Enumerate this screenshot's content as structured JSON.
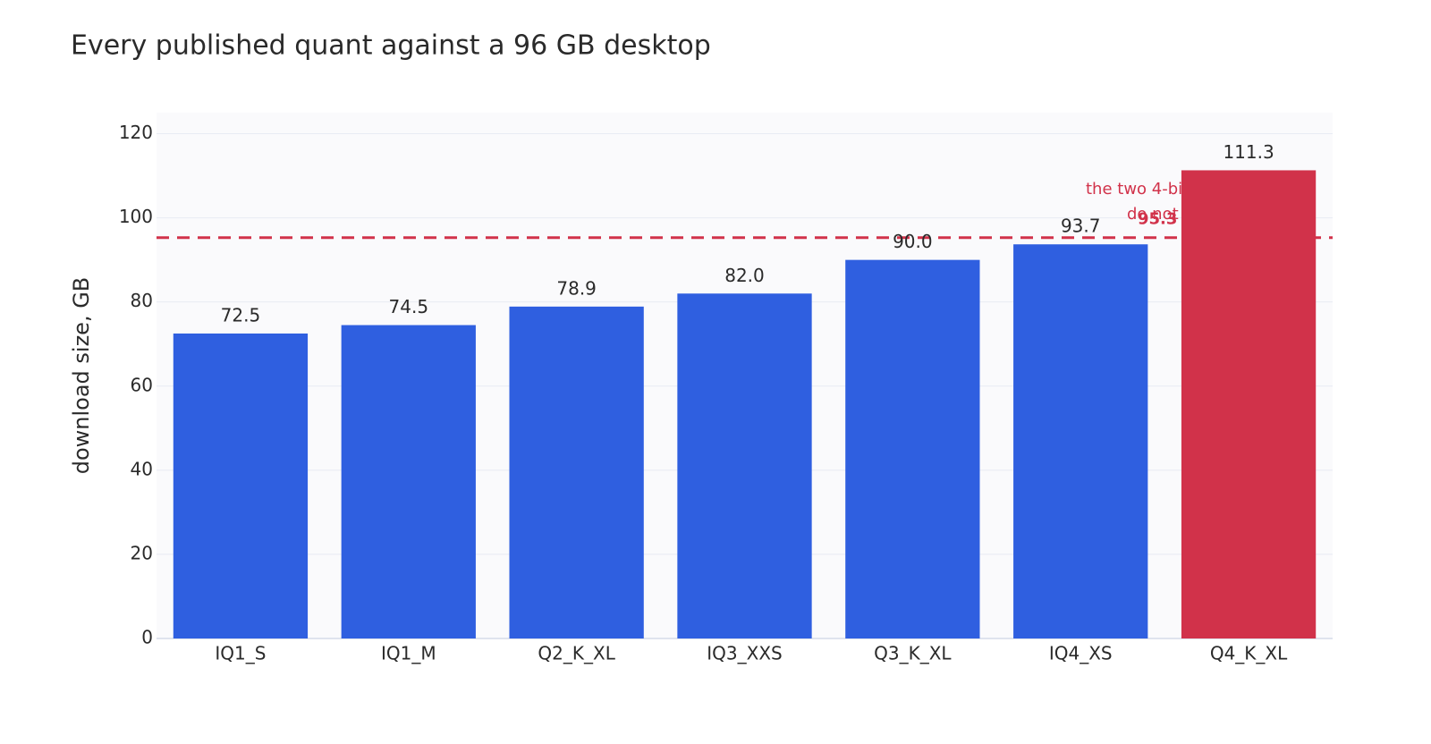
{
  "chart_data": {
    "type": "bar",
    "title": "Every published quant against a 96 GB desktop",
    "y_label": "download size, GB",
    "categories": [
      "IQ1_S",
      "IQ1_M",
      "Q2_K_XL",
      "IQ3_XXS",
      "Q3_K_XL",
      "IQ4_XS",
      "Q4_K_XL"
    ],
    "values": [
      72.5,
      74.5,
      78.9,
      82.0,
      90.0,
      93.7,
      111.3
    ],
    "value_labels": [
      "72.5",
      "74.5",
      "78.9",
      "82.0",
      "90.0",
      "93.7",
      "111.3"
    ],
    "colors": [
      "#2f5fe0",
      "#2f5fe0",
      "#2f5fe0",
      "#2f5fe0",
      "#2f5fe0",
      "#2f5fe0",
      "#d1324a"
    ],
    "ylim": [
      0,
      125
    ],
    "yticks": [
      0,
      20,
      40,
      60,
      80,
      100,
      120
    ],
    "grid": true,
    "threshold": {
      "value": 95.3,
      "color": "#d1324a"
    },
    "annotation": [
      "the two 4-bi",
      "do not"
    ]
  }
}
